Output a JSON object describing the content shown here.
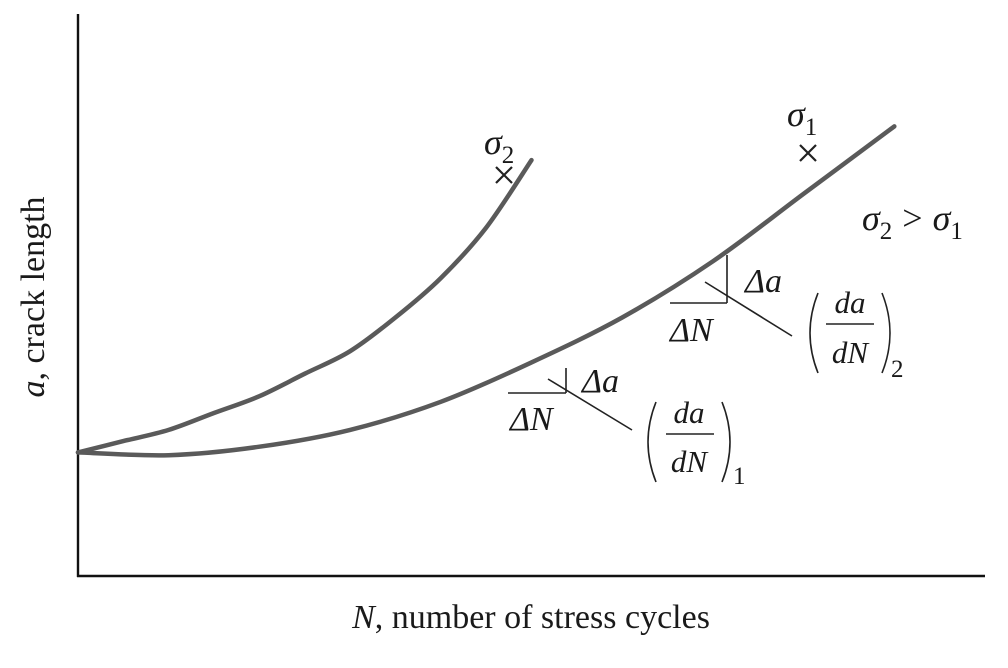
{
  "chart_data": {
    "type": "line",
    "title": "",
    "xlabel_var": "N",
    "xlabel_rest": ", number of stress cycles",
    "ylabel_var": "a",
    "ylabel_rest": ", crack length",
    "series": [
      {
        "name": "σ₂",
        "name_sym": "σ",
        "name_sub": "2",
        "color": "#5a5a5a",
        "x": [
          0,
          0.05,
          0.1,
          0.15,
          0.2,
          0.25,
          0.3,
          0.35,
          0.4,
          0.45,
          0.5
        ],
        "y": [
          0.22,
          0.24,
          0.26,
          0.29,
          0.32,
          0.36,
          0.4,
          0.46,
          0.53,
          0.62,
          0.74
        ]
      },
      {
        "name": "σ₁",
        "name_sym": "σ",
        "name_sub": "1",
        "color": "#5a5a5a",
        "x": [
          0,
          0.1,
          0.2,
          0.3,
          0.4,
          0.5,
          0.6,
          0.7,
          0.8,
          0.9
        ],
        "y": [
          0.22,
          0.215,
          0.23,
          0.26,
          0.31,
          0.38,
          0.46,
          0.56,
          0.68,
          0.8
        ]
      }
    ],
    "relation": {
      "lhs_sym": "σ",
      "lhs_sub": "2",
      "op": ">",
      "rhs_sym": "σ",
      "rhs_sub": "1"
    },
    "annotations": [
      {
        "delta_a": "Δa",
        "delta_N": "ΔN",
        "frac_num": "da",
        "frac_den": "dN",
        "subscript": "1"
      },
      {
        "delta_a": "Δa",
        "delta_N": "ΔN",
        "frac_num": "da",
        "frac_den": "dN",
        "subscript": "2"
      }
    ],
    "grid": false,
    "ticks": false
  }
}
